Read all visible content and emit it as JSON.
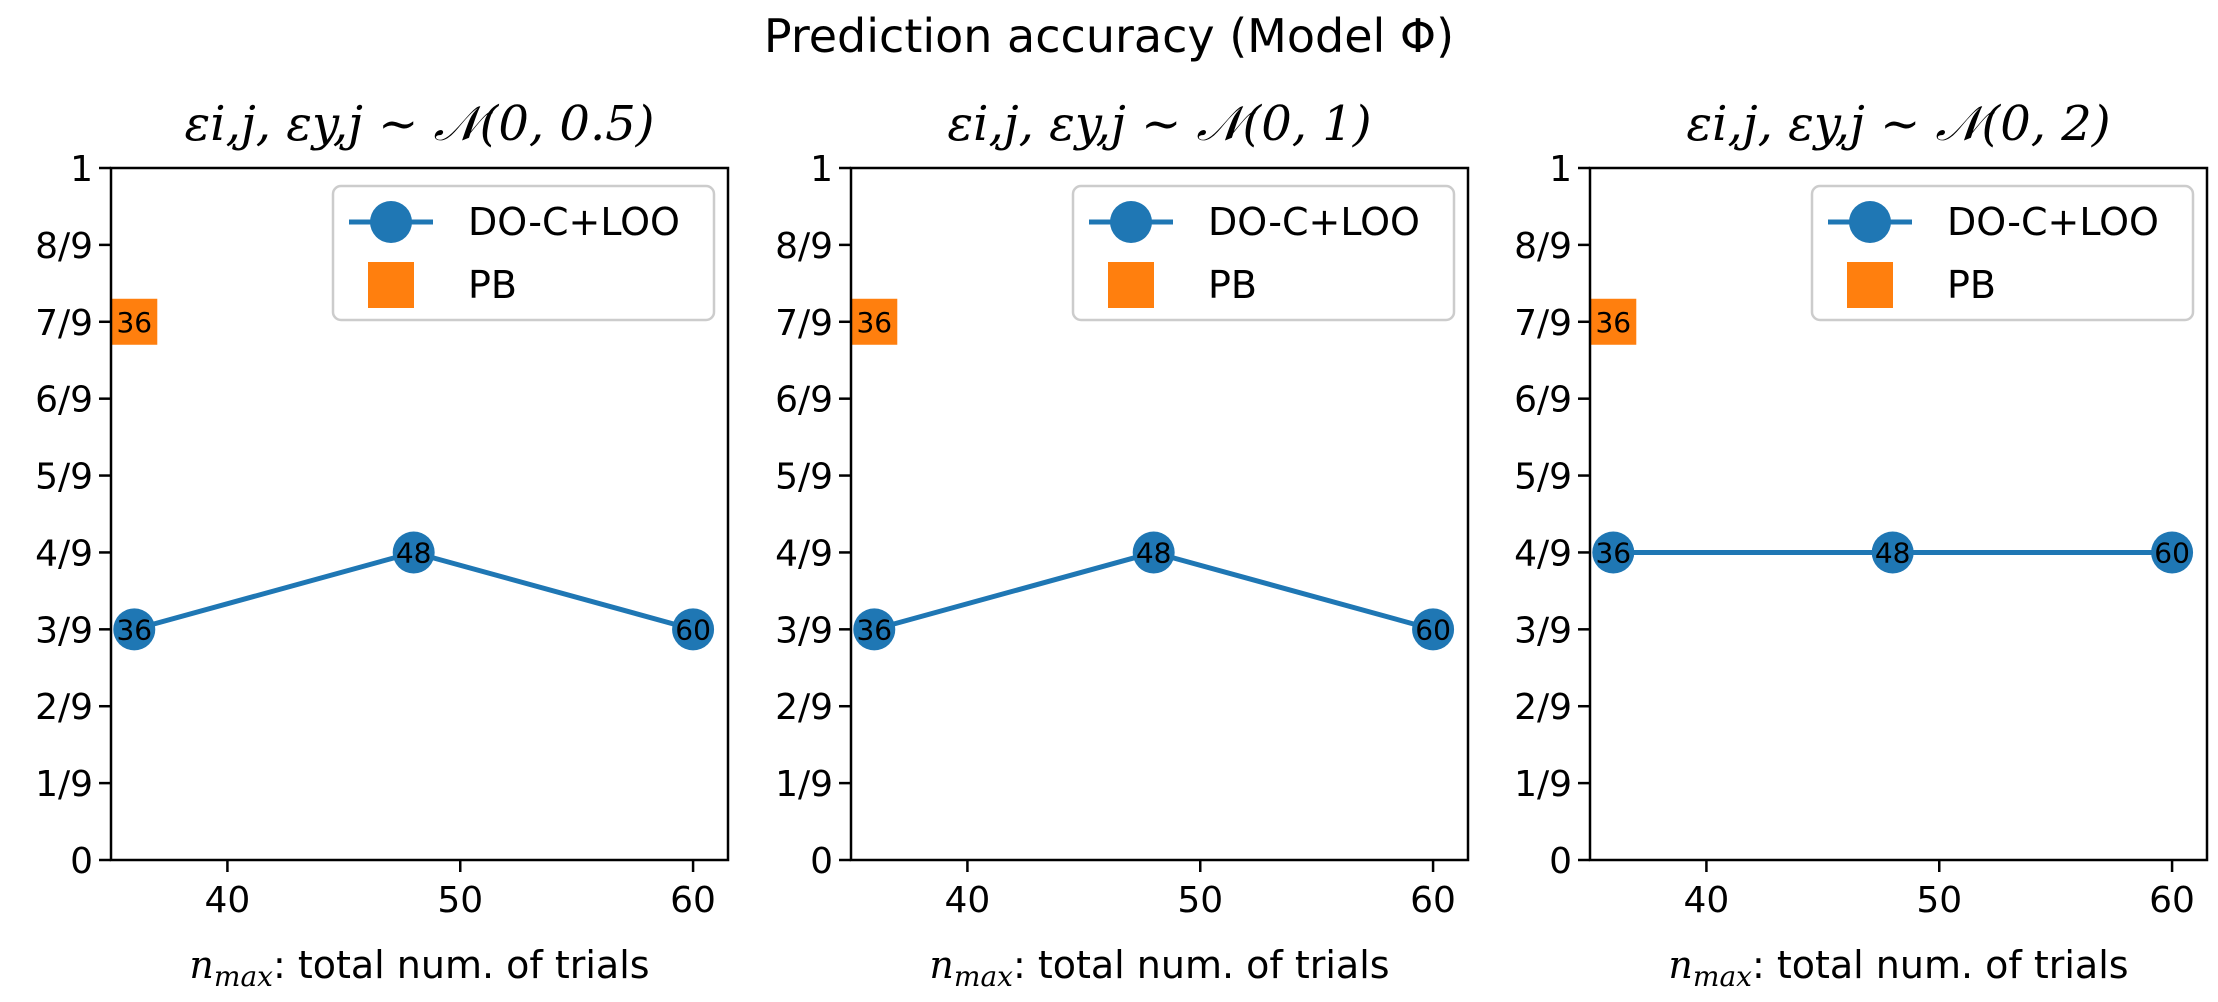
{
  "figure": {
    "title": "Prediction accuracy (Model Φ)"
  },
  "colors": {
    "series_line": "#1f77b4",
    "series_square": "#ff7f0e",
    "axes": "#000000"
  },
  "chart_data": [
    {
      "type": "line",
      "title": "εi,j, εy,j ~ 𝒩(0, 0.5)",
      "xlabel": "nmax: total num. of trials",
      "xlabel_parts": {
        "var": "n",
        "sub": "max",
        "rest": ": total num. of trials"
      },
      "xlim": [
        35,
        61.5
      ],
      "ylim": [
        0,
        1
      ],
      "xticks": [
        40,
        50,
        60
      ],
      "yticks": [
        "0",
        "1/9",
        "2/9",
        "3/9",
        "4/9",
        "5/9",
        "6/9",
        "7/9",
        "8/9",
        "1"
      ],
      "legend": {
        "position": "top-right"
      },
      "series": [
        {
          "name": "DO-C+LOO",
          "marker": "circle",
          "x": [
            36,
            48,
            60
          ],
          "y": [
            0.3333,
            0.4444,
            0.3333
          ],
          "labels": [
            "36",
            "48",
            "60"
          ]
        },
        {
          "name": "PB",
          "marker": "square",
          "x": [
            36
          ],
          "y": [
            0.7778
          ],
          "labels": [
            "36"
          ]
        }
      ]
    },
    {
      "type": "line",
      "title": "εi,j, εy,j ~ 𝒩(0, 1)",
      "xlabel": "nmax: total num. of trials",
      "xlabel_parts": {
        "var": "n",
        "sub": "max",
        "rest": ": total num. of trials"
      },
      "xlim": [
        35,
        61.5
      ],
      "ylim": [
        0,
        1
      ],
      "xticks": [
        40,
        50,
        60
      ],
      "yticks": [
        "0",
        "1/9",
        "2/9",
        "3/9",
        "4/9",
        "5/9",
        "6/9",
        "7/9",
        "8/9",
        "1"
      ],
      "legend": {
        "position": "top-right"
      },
      "series": [
        {
          "name": "DO-C+LOO",
          "marker": "circle",
          "x": [
            36,
            48,
            60
          ],
          "y": [
            0.3333,
            0.4444,
            0.3333
          ],
          "labels": [
            "36",
            "48",
            "60"
          ]
        },
        {
          "name": "PB",
          "marker": "square",
          "x": [
            36
          ],
          "y": [
            0.7778
          ],
          "labels": [
            "36"
          ]
        }
      ]
    },
    {
      "type": "line",
      "title": "εi,j, εy,j ~ 𝒩(0, 2)",
      "xlabel": "nmax: total num. of trials",
      "xlabel_parts": {
        "var": "n",
        "sub": "max",
        "rest": ": total num. of trials"
      },
      "xlim": [
        35,
        61.5
      ],
      "ylim": [
        0,
        1
      ],
      "xticks": [
        40,
        50,
        60
      ],
      "yticks": [
        "0",
        "1/9",
        "2/9",
        "3/9",
        "4/9",
        "5/9",
        "6/9",
        "7/9",
        "8/9",
        "1"
      ],
      "legend": {
        "position": "top-right"
      },
      "series": [
        {
          "name": "DO-C+LOO",
          "marker": "circle",
          "x": [
            36,
            48,
            60
          ],
          "y": [
            0.4444,
            0.4444,
            0.4444
          ],
          "labels": [
            "36",
            "48",
            "60"
          ]
        },
        {
          "name": "PB",
          "marker": "square",
          "x": [
            36
          ],
          "y": [
            0.7778
          ],
          "labels": [
            "36"
          ]
        }
      ]
    }
  ]
}
